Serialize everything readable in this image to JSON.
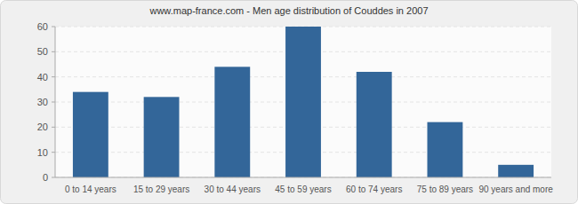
{
  "chart_data": {
    "type": "bar",
    "title": "www.map-france.com - Men age distribution of Couddes in 2007",
    "categories": [
      "0 to 14 years",
      "15 to 29 years",
      "30 to 44 years",
      "45 to 59 years",
      "60 to 74 years",
      "75 to 89 years",
      "90 years and more"
    ],
    "values": [
      34,
      32,
      44,
      60,
      42,
      22,
      5
    ],
    "color": "#336699",
    "ylim": [
      0,
      60
    ],
    "yticks": [
      0,
      10,
      20,
      30,
      40,
      50,
      60
    ],
    "grid": true
  }
}
